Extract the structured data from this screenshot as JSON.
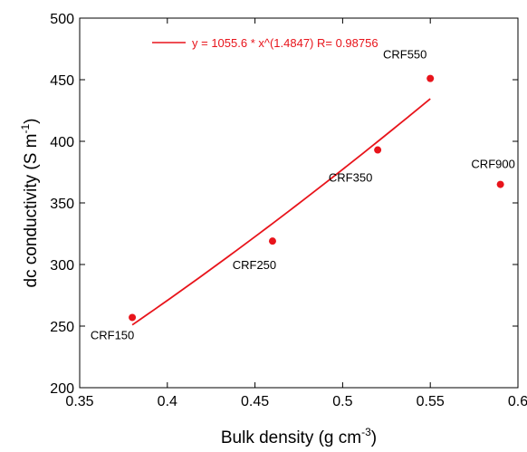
{
  "chart_data": {
    "type": "scatter",
    "xlabel": "Bulk density (g cm",
    "xlabel_sup": "-3",
    "xlabel_close": ")",
    "ylabel": "dc conductivity (S m",
    "ylabel_sup": "-1",
    "ylabel_close": ")",
    "xlim": [
      0.35,
      0.6
    ],
    "ylim": [
      200,
      500
    ],
    "x_ticks": [
      0.35,
      0.4,
      0.45,
      0.5,
      0.55,
      0.6
    ],
    "x_tick_labels": [
      "0.35",
      "0.4",
      "0.45",
      "0.5",
      "0.55",
      "0.6"
    ],
    "y_ticks": [
      200,
      250,
      300,
      350,
      400,
      450,
      500
    ],
    "y_tick_labels": [
      "200",
      "250",
      "300",
      "350",
      "400",
      "450",
      "500"
    ],
    "grid": false,
    "legend_position": "top-left",
    "color": "#e8141b",
    "points": [
      {
        "label": "CRF150",
        "x": 0.38,
        "y": 257
      },
      {
        "label": "CRF250",
        "x": 0.46,
        "y": 319
      },
      {
        "label": "CRF350",
        "x": 0.52,
        "y": 393
      },
      {
        "label": "CRF550",
        "x": 0.55,
        "y": 451
      },
      {
        "label": "CRF900",
        "x": 0.59,
        "y": 365
      }
    ],
    "fit": {
      "legend_text": "y = 1055.6 * x^(1.4847)   R= 0.98756",
      "a": 1055.6,
      "b": 1.4847,
      "x_range": [
        0.38,
        0.55
      ]
    }
  }
}
